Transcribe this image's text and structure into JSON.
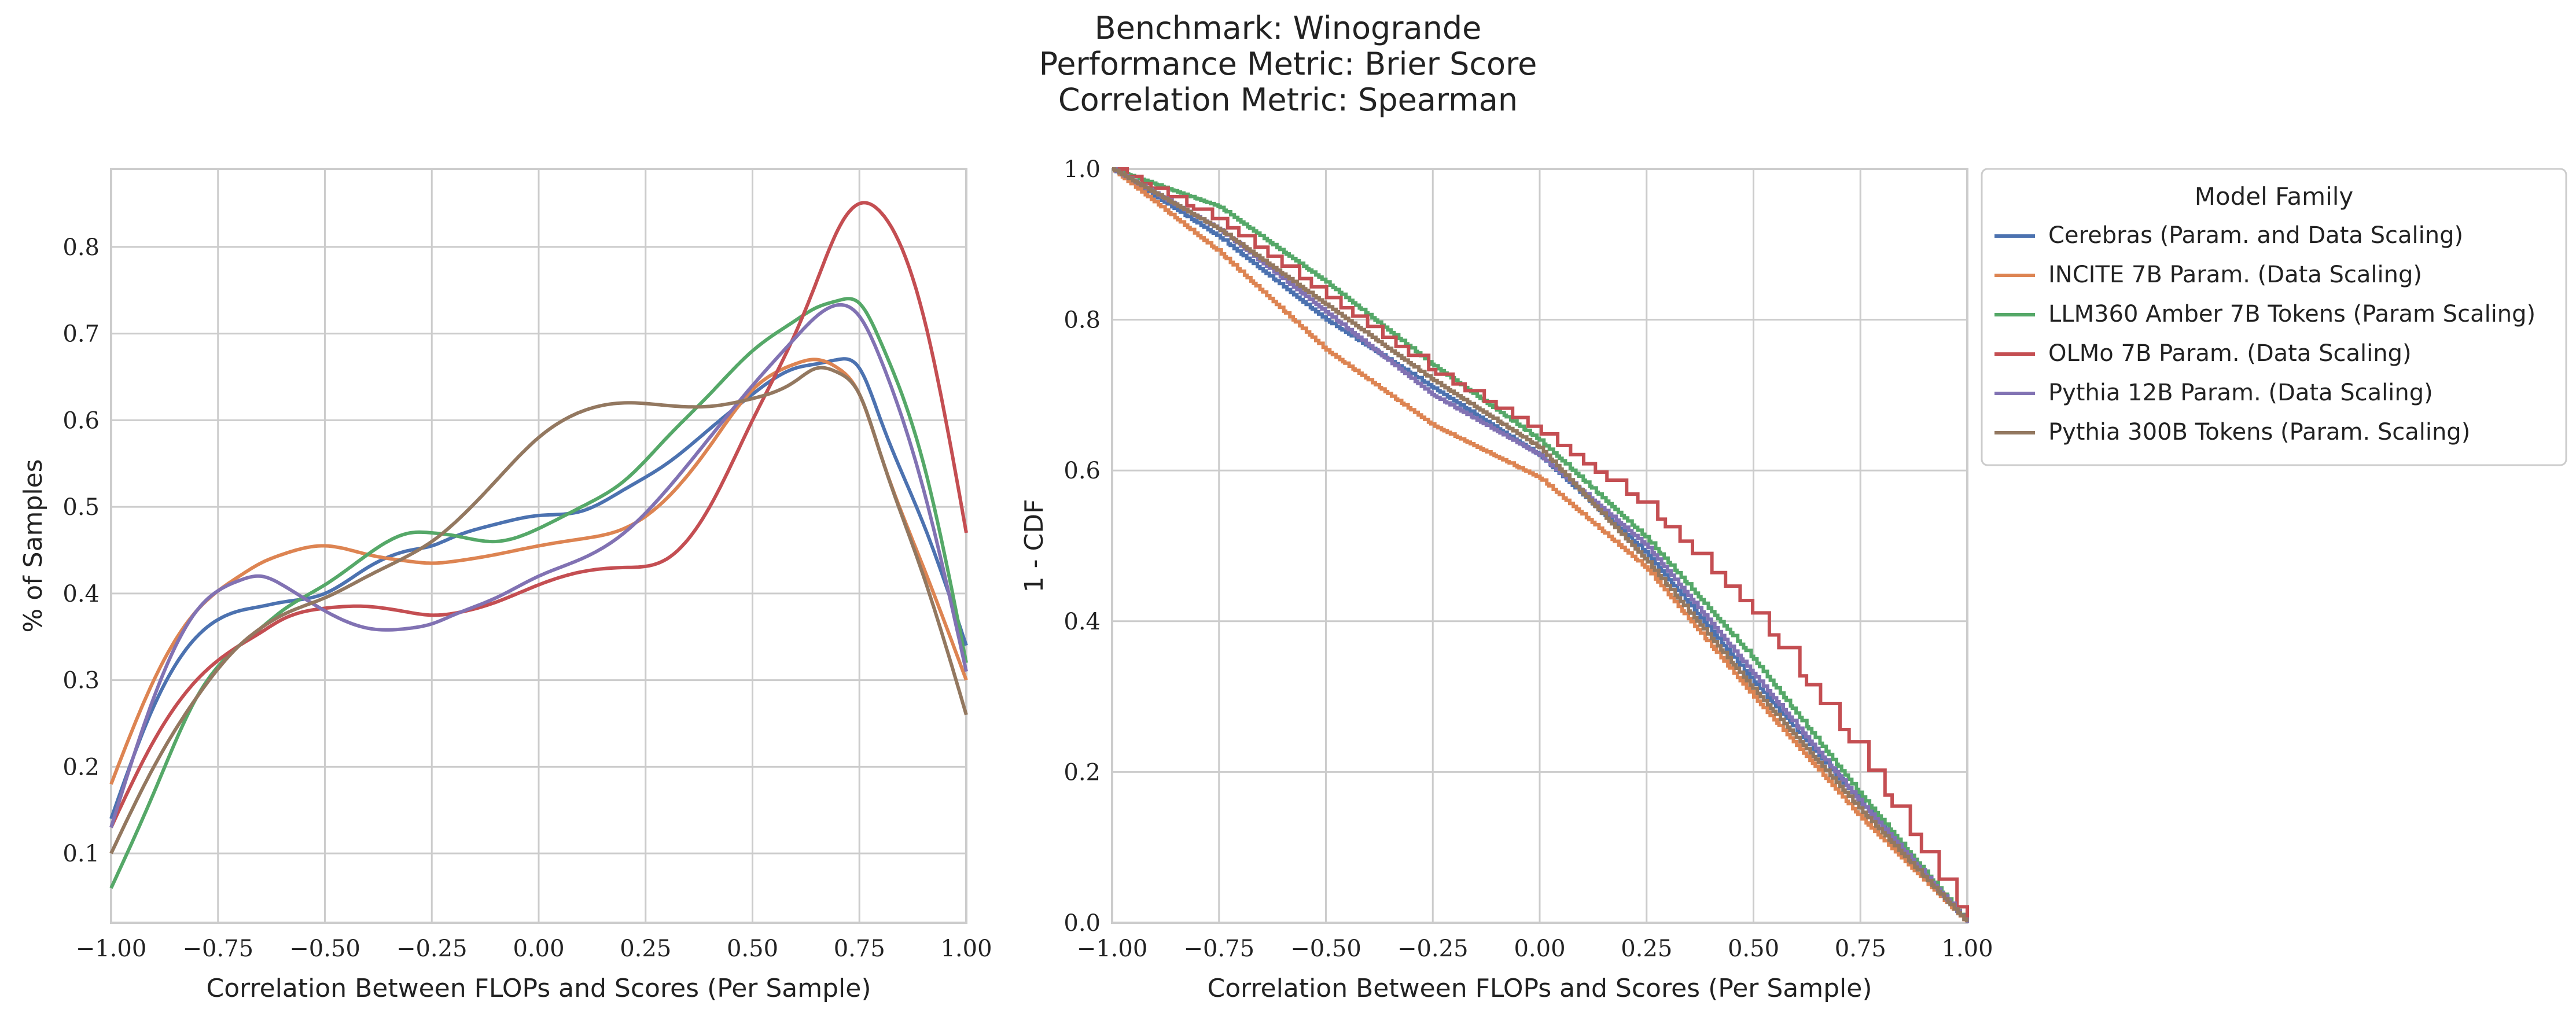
{
  "title_lines": [
    "Benchmark: Winogrande",
    "Performance Metric: Brier Score",
    "Correlation Metric: Spearman"
  ],
  "colors": {
    "Cerebras": "#4c72b0",
    "INCITE": "#dd8452",
    "LLM360": "#55a868",
    "OLMo": "#c44e52",
    "Pythia12B": "#8172b3",
    "Pythia300B": "#937860"
  },
  "chart_data": [
    {
      "type": "line",
      "subtype": "kde",
      "xlabel": "Correlation Between FLOPs and Scores (Per Sample)",
      "ylabel": "% of Samples",
      "xlim": [
        -1.0,
        1.0
      ],
      "ylim": [
        0.02,
        0.89
      ],
      "xticks": [
        "−1.00",
        "−0.75",
        "−0.50",
        "−0.25",
        "0.00",
        "0.25",
        "0.50",
        "0.75",
        "1.00"
      ],
      "yticks": [
        "0.1",
        "0.2",
        "0.3",
        "0.4",
        "0.5",
        "0.6",
        "0.7",
        "0.8"
      ],
      "grid": true,
      "x": [
        -1.0,
        -0.9,
        -0.8,
        -0.7,
        -0.65,
        -0.6,
        -0.5,
        -0.4,
        -0.3,
        -0.25,
        -0.2,
        -0.1,
        0.0,
        0.1,
        0.2,
        0.3,
        0.4,
        0.5,
        0.6,
        0.65,
        0.7,
        0.75,
        0.8,
        0.9,
        1.0
      ],
      "series": [
        {
          "name": "Cerebras (Param. and Data Scaling)",
          "color": "#4c72b0",
          "values": [
            0.14,
            0.27,
            0.35,
            0.38,
            0.385,
            0.39,
            0.4,
            0.43,
            0.45,
            0.455,
            0.465,
            0.48,
            0.49,
            0.495,
            0.52,
            0.55,
            0.59,
            0.63,
            0.66,
            0.665,
            0.67,
            0.66,
            0.6,
            0.48,
            0.34
          ]
        },
        {
          "name": "INCITE 7B Param. (Data Scaling)",
          "color": "#dd8452",
          "values": [
            0.18,
            0.3,
            0.38,
            0.42,
            0.435,
            0.445,
            0.455,
            0.445,
            0.437,
            0.435,
            0.437,
            0.445,
            0.455,
            0.463,
            0.475,
            0.51,
            0.57,
            0.635,
            0.665,
            0.67,
            0.66,
            0.63,
            0.56,
            0.43,
            0.3
          ]
        },
        {
          "name": "LLM360 Amber 7B Tokens (Param Scaling)",
          "color": "#55a868",
          "values": [
            0.06,
            0.17,
            0.28,
            0.34,
            0.36,
            0.38,
            0.41,
            0.445,
            0.47,
            0.47,
            0.467,
            0.46,
            0.475,
            0.5,
            0.53,
            0.58,
            0.63,
            0.68,
            0.715,
            0.73,
            0.738,
            0.735,
            0.69,
            0.55,
            0.32
          ]
        },
        {
          "name": "OLMo 7B Param. (Data Scaling)",
          "color": "#c44e52",
          "values": [
            0.13,
            0.23,
            0.3,
            0.34,
            0.355,
            0.37,
            0.383,
            0.385,
            0.378,
            0.375,
            0.377,
            0.39,
            0.41,
            0.425,
            0.43,
            0.44,
            0.5,
            0.6,
            0.7,
            0.76,
            0.82,
            0.85,
            0.84,
            0.72,
            0.47
          ]
        },
        {
          "name": "Pythia 12B Param. (Data Scaling)",
          "color": "#8172b3",
          "values": [
            0.13,
            0.28,
            0.38,
            0.415,
            0.42,
            0.41,
            0.38,
            0.36,
            0.36,
            0.365,
            0.375,
            0.395,
            0.42,
            0.44,
            0.47,
            0.52,
            0.58,
            0.64,
            0.695,
            0.72,
            0.733,
            0.72,
            0.67,
            0.52,
            0.31
          ]
        },
        {
          "name": "Pythia 300B Tokens (Param. Scaling)",
          "color": "#937860",
          "values": [
            0.1,
            0.2,
            0.28,
            0.34,
            0.36,
            0.375,
            0.395,
            0.42,
            0.445,
            0.46,
            0.48,
            0.53,
            0.58,
            0.61,
            0.62,
            0.617,
            0.616,
            0.625,
            0.645,
            0.66,
            0.655,
            0.63,
            0.56,
            0.42,
            0.26
          ]
        }
      ]
    },
    {
      "type": "line",
      "subtype": "step",
      "xlabel": "Correlation Between FLOPs and Scores (Per Sample)",
      "ylabel": "1 - CDF",
      "xlim": [
        -1.0,
        1.0
      ],
      "ylim": [
        0.0,
        1.0
      ],
      "xticks": [
        "−1.00",
        "−0.75",
        "−0.50",
        "−0.25",
        "0.00",
        "0.25",
        "0.50",
        "0.75",
        "1.00"
      ],
      "yticks": [
        "0.0",
        "0.2",
        "0.4",
        "0.6",
        "0.8",
        "1.0"
      ],
      "grid": true,
      "legend": {
        "title": "Model Family",
        "placement": "outside-right"
      },
      "series": [
        {
          "name": "Cerebras (Param. and Data Scaling)",
          "color": "#4c72b0",
          "x": [
            -1.0,
            -0.75,
            -0.5,
            -0.25,
            0.0,
            0.25,
            0.5,
            0.75,
            1.0
          ],
          "values": [
            1.0,
            0.91,
            0.8,
            0.71,
            0.62,
            0.49,
            0.32,
            0.16,
            0.0
          ]
        },
        {
          "name": "INCITE 7B Param. (Data Scaling)",
          "color": "#dd8452",
          "x": [
            -1.0,
            -0.75,
            -0.5,
            -0.25,
            0.0,
            0.25,
            0.5,
            0.75,
            1.0
          ],
          "values": [
            1.0,
            0.89,
            0.76,
            0.66,
            0.59,
            0.47,
            0.3,
            0.14,
            0.0
          ]
        },
        {
          "name": "LLM360 Amber 7B Tokens (Param Scaling)",
          "color": "#55a868",
          "x": [
            -1.0,
            -0.75,
            -0.5,
            -0.25,
            0.0,
            0.25,
            0.5,
            0.75,
            1.0
          ],
          "values": [
            1.0,
            0.95,
            0.85,
            0.74,
            0.64,
            0.51,
            0.35,
            0.17,
            0.0
          ]
        },
        {
          "name": "OLMo 7B Param. (Data Scaling)",
          "color": "#c44e52",
          "x": [
            -1.0,
            -0.75,
            -0.5,
            -0.25,
            0.0,
            0.25,
            0.5,
            0.75,
            1.0
          ],
          "values": [
            1.0,
            0.93,
            0.83,
            0.73,
            0.65,
            0.55,
            0.41,
            0.22,
            0.0
          ]
        },
        {
          "name": "Pythia 12B Param. (Data Scaling)",
          "color": "#8172b3",
          "x": [
            -1.0,
            -0.75,
            -0.5,
            -0.25,
            0.0,
            0.25,
            0.5,
            0.75,
            1.0
          ],
          "values": [
            1.0,
            0.92,
            0.81,
            0.7,
            0.62,
            0.5,
            0.33,
            0.16,
            0.0
          ]
        },
        {
          "name": "Pythia 300B Tokens (Param. Scaling)",
          "color": "#937860",
          "x": [
            -1.0,
            -0.75,
            -0.5,
            -0.25,
            0.0,
            0.25,
            0.5,
            0.75,
            1.0
          ],
          "values": [
            1.0,
            0.92,
            0.82,
            0.72,
            0.63,
            0.48,
            0.31,
            0.15,
            0.0
          ]
        }
      ]
    }
  ]
}
